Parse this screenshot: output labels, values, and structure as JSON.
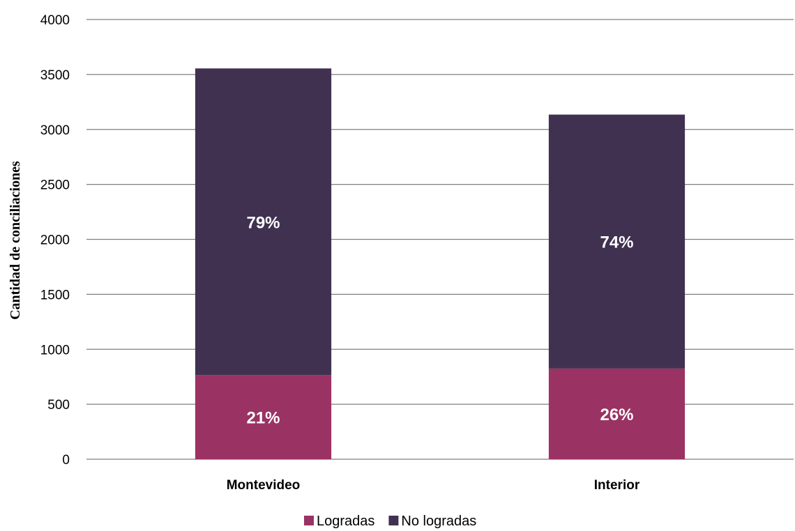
{
  "chart_data": {
    "type": "bar",
    "stacked": true,
    "categories": [
      "Montevideo",
      "Interior"
    ],
    "series": [
      {
        "name": "Logradas",
        "values": [
          765,
          825
        ],
        "labels": [
          "21%",
          "26%"
        ],
        "color": "#9b3264"
      },
      {
        "name": "No logradas",
        "values": [
          2790,
          2310
        ],
        "labels": [
          "79%",
          "74%"
        ],
        "color": "#403151"
      }
    ],
    "ylabel": "Cantidad de conciliaciones",
    "xlabel": "",
    "ylim": [
      0,
      4000
    ],
    "yticks": [
      "0",
      "500",
      "1000",
      "1500",
      "2000",
      "2500",
      "3000",
      "3500",
      "4000"
    ],
    "grid": true,
    "legend_position": "bottom"
  }
}
